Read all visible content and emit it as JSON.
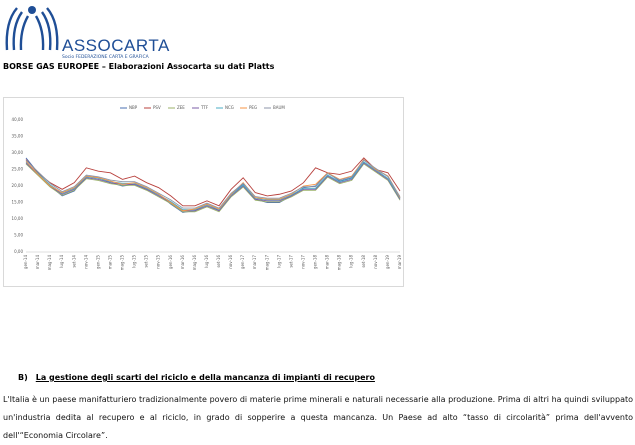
{
  "header": {
    "brand": "ASSOCARTA",
    "tagline": "Socio FEDERAZIONE CARTA E GRAFICA",
    "title": "BORSE GAS EUROPEE – Elaborazioni Assocarta su dati Platts"
  },
  "chart_data": {
    "type": "line",
    "categories": [
      "gen-14",
      "mar-14",
      "mag-14",
      "lug-14",
      "set-14",
      "nov-14",
      "gen-15",
      "mar-15",
      "mag-15",
      "lug-15",
      "set-15",
      "nov-15",
      "gen-16",
      "mar-16",
      "mag-16",
      "lug-16",
      "set-16",
      "nov-16",
      "gen-17",
      "mar-17",
      "mag-17",
      "lug-17",
      "set-17",
      "nov-17",
      "gen-18",
      "mar-18",
      "mag-18",
      "lug-18",
      "set-18",
      "nov-18",
      "gen-19",
      "mar-19"
    ],
    "series": [
      {
        "name": "NBP",
        "color": "#4a6fb0",
        "values": [
          28.5,
          24,
          20,
          17,
          18.5,
          23,
          22.5,
          21,
          20,
          20.5,
          19,
          17.5,
          14.5,
          12,
          12.5,
          14.5,
          12.5,
          17.5,
          20.5,
          16,
          15,
          15,
          17,
          19.5,
          20,
          24,
          21.5,
          22.5,
          28,
          25,
          23,
          16.5
        ]
      },
      {
        "name": "PSV",
        "color": "#b8403c",
        "values": [
          28,
          24,
          21,
          19,
          21,
          25.5,
          24.5,
          24,
          22,
          23,
          21,
          19.5,
          17,
          14,
          14,
          15.5,
          14,
          19,
          22.5,
          18,
          17,
          17.5,
          18.5,
          21,
          25.5,
          24,
          23.5,
          24.5,
          28.5,
          25,
          24,
          18.5
        ]
      },
      {
        "name": "ZEE",
        "color": "#9bb26a",
        "values": [
          26.7,
          23.2,
          19.7,
          17.2,
          18.7,
          22.2,
          21.7,
          20.7,
          20.2,
          20.2,
          18.7,
          16.7,
          14.7,
          12.2,
          12.2,
          13.7,
          12.2,
          16.7,
          19.7,
          15.7,
          15.2,
          15.2,
          16.7,
          18.7,
          18.7,
          22.7,
          20.7,
          21.7,
          26.7,
          24.2,
          21.7,
          15.7
        ]
      },
      {
        "name": "TTF",
        "color": "#7b5ea7",
        "values": [
          27,
          23.5,
          20,
          17.5,
          19,
          22.5,
          22,
          21,
          20.5,
          20.5,
          19,
          17,
          15,
          12.5,
          12.5,
          14,
          12.5,
          17,
          20,
          16,
          15.5,
          15.5,
          17,
          19,
          19,
          23,
          21,
          22,
          27,
          24.5,
          22,
          16
        ]
      },
      {
        "name": "NCG",
        "color": "#4bacc6",
        "values": [
          27.3,
          23.8,
          20.3,
          17.8,
          19.3,
          22.8,
          22.3,
          21.3,
          20.8,
          20.8,
          19.3,
          17.3,
          15.3,
          12.8,
          12.8,
          14.3,
          12.8,
          17.3,
          20.3,
          16.3,
          15.8,
          15.8,
          17.3,
          19.3,
          19.3,
          23.3,
          21.3,
          22.3,
          27.3,
          24.8,
          22.3,
          16.3
        ]
      },
      {
        "name": "PEG",
        "color": "#f79646",
        "values": [
          27.5,
          23.5,
          20,
          18,
          19.5,
          23,
          22.5,
          21.5,
          20.5,
          21,
          19.5,
          17.5,
          15,
          12.5,
          13,
          14.5,
          13,
          17.5,
          21,
          16.5,
          16,
          16,
          17.5,
          20,
          20.5,
          24,
          22,
          23,
          28,
          25,
          23,
          16.5
        ]
      },
      {
        "name": "BAUM",
        "color": "#8c96a8",
        "values": [
          27.8,
          24.3,
          20.8,
          18.3,
          19.8,
          23.3,
          22.8,
          21.8,
          21.3,
          21.3,
          19.8,
          17.8,
          15.8,
          13.3,
          13.3,
          14.8,
          13.3,
          17.8,
          20.8,
          16.8,
          16.3,
          16.3,
          17.8,
          19.8,
          19.8,
          23.8,
          21.8,
          22.8,
          27.8,
          25.3,
          22.8,
          16.8
        ]
      }
    ],
    "ylim": [
      0,
      40
    ],
    "yticks": [
      {
        "value": 0,
        "label": "0,00"
      },
      {
        "value": 5,
        "label": "5,00"
      },
      {
        "value": 10,
        "label": "10,00"
      },
      {
        "value": 15,
        "label": "15,00"
      },
      {
        "value": 20,
        "label": "20,00"
      },
      {
        "value": 25,
        "label": "25,00"
      },
      {
        "value": 30,
        "label": "30,00"
      },
      {
        "value": 35,
        "label": "35,00"
      },
      {
        "value": 40,
        "label": "40,00"
      }
    ],
    "grid": false,
    "legend": "top"
  },
  "section": {
    "heading_number": "B)",
    "heading": "La gestione degli scarti del riciclo e della mancanza di impianti di recupero",
    "paragraph": "L'Italia è un paese manifatturiero tradizionalmente povero di materie prime minerali e naturali necessarie alla produzione. Prima di altri ha quindi sviluppato un'industria dedita al recupero e al riciclo, in grado di sopperire a questa mancanza. Un Paese ad alto “tasso di circolarità” prima dell'avvento dell'“Economia Circolare”."
  }
}
